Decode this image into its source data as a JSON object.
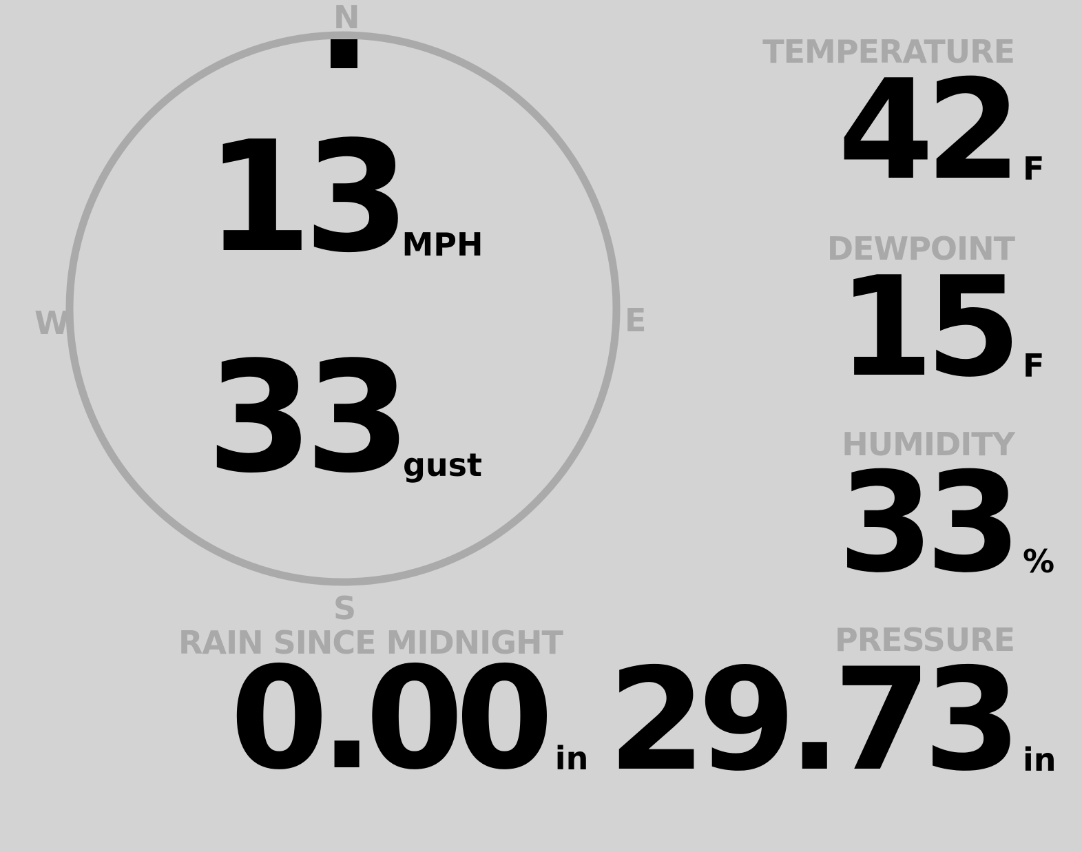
{
  "wind": {
    "speed": "13",
    "speed_unit": "MPH",
    "gust": "33",
    "gust_unit": "gust",
    "direction_degrees": 0,
    "compass": {
      "n": "N",
      "e": "E",
      "s": "S",
      "w": "W"
    }
  },
  "rain": {
    "label": "RAIN SINCE MIDNIGHT",
    "value": "0.00",
    "unit": "in"
  },
  "temperature": {
    "label": "TEMPERATURE",
    "value": "42",
    "unit": "F"
  },
  "dewpoint": {
    "label": "DEWPOINT",
    "value": "15",
    "unit": "F"
  },
  "humidity": {
    "label": "HUMIDITY",
    "value": "33",
    "unit": "%"
  },
  "pressure": {
    "label": "PRESSURE",
    "value": "29.73",
    "unit": "in"
  },
  "colors": {
    "background": "#d3d3d3",
    "label": "#a9a9a9",
    "value": "#000000",
    "ring": "#aaaaaa"
  }
}
